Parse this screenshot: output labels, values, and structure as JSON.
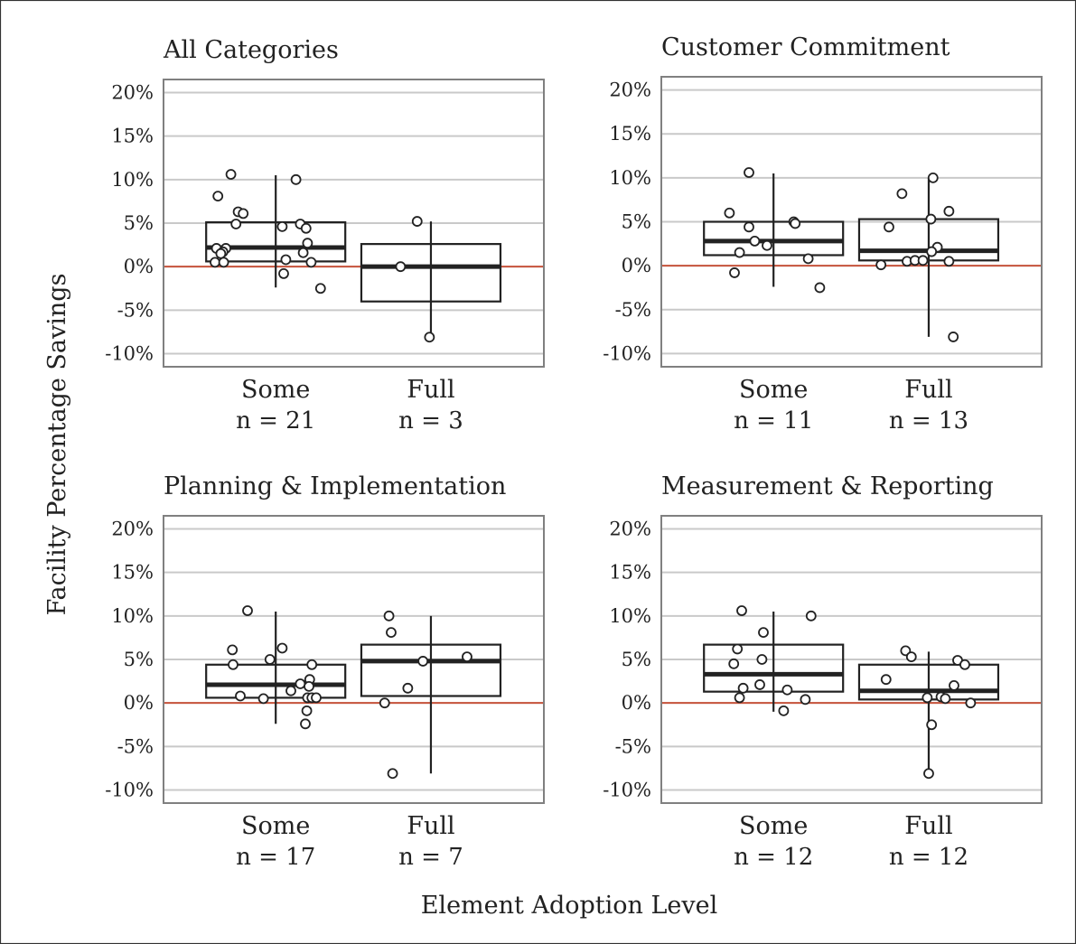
{
  "chart_data": {
    "type": "box",
    "xlabel": "Element Adoption Level",
    "ylabel": "Facility Percentage Savings",
    "ylim": [
      -11.5,
      21.5
    ],
    "yticks": [
      20,
      15,
      10,
      5,
      0,
      -5,
      -10
    ],
    "ytick_labels": [
      "20%",
      "15%",
      "10%",
      "5%",
      "0%",
      "-5%",
      "-10%"
    ],
    "grid": "horizontal",
    "reference_line": {
      "y": 0,
      "color": "#c8553d"
    },
    "colors": {
      "box": "#222222",
      "grid": "#c9c9c9",
      "frame": "#808080",
      "zero_line": "#c8553d",
      "point_fill": "#ffffff"
    },
    "panels": [
      {
        "title": "All Categories",
        "groups": [
          {
            "label": "Some",
            "n_label": "n = 21",
            "box": {
              "q1": 0.6,
              "median": 2.2,
              "q3": 5.1,
              "whisker_low": -2.4,
              "whisker_high": 10.5
            },
            "points": [
              {
                "x": -0.8,
                "y": 8.1
              },
              {
                "x": -0.62,
                "y": 10.6
              },
              {
                "x": -0.52,
                "y": 6.3
              },
              {
                "x": -0.45,
                "y": 6.1
              },
              {
                "x": -0.55,
                "y": 4.9
              },
              {
                "x": 0.28,
                "y": 10.0
              },
              {
                "x": 0.09,
                "y": 4.6
              },
              {
                "x": 0.34,
                "y": 4.9
              },
              {
                "x": 0.42,
                "y": 4.4
              },
              {
                "x": 0.44,
                "y": 2.7
              },
              {
                "x": 0.38,
                "y": 1.6
              },
              {
                "x": -0.82,
                "y": 2.1
              },
              {
                "x": -0.69,
                "y": 2.1
              },
              {
                "x": -0.73,
                "y": 1.7
              },
              {
                "x": -0.76,
                "y": 1.5
              },
              {
                "x": -0.84,
                "y": 0.5
              },
              {
                "x": -0.72,
                "y": 0.5
              },
              {
                "x": 0.14,
                "y": 0.8
              },
              {
                "x": 0.49,
                "y": 0.5
              },
              {
                "x": 0.11,
                "y": -0.8
              },
              {
                "x": 0.62,
                "y": -2.5
              }
            ]
          },
          {
            "label": "Full",
            "n_label": "n = 3",
            "box": {
              "q1": -4.0,
              "median": 0.0,
              "q3": 2.6,
              "whisker_low": -8.1,
              "whisker_high": 5.2
            },
            "points": [
              {
                "x": -0.19,
                "y": 5.2
              },
              {
                "x": -0.42,
                "y": 0.0
              },
              {
                "x": -0.02,
                "y": -8.1
              }
            ]
          }
        ]
      },
      {
        "title": "Customer Commitment",
        "groups": [
          {
            "label": "Some",
            "n_label": "n = 11",
            "box": {
              "q1": 1.2,
              "median": 2.8,
              "q3": 5.0,
              "whisker_low": -2.4,
              "whisker_high": 10.5
            },
            "points": [
              {
                "x": -0.34,
                "y": 10.6
              },
              {
                "x": -0.61,
                "y": 6.0
              },
              {
                "x": -0.34,
                "y": 4.4
              },
              {
                "x": 0.28,
                "y": 5.0
              },
              {
                "x": 0.3,
                "y": 4.8
              },
              {
                "x": -0.26,
                "y": 2.8
              },
              {
                "x": -0.09,
                "y": 2.3
              },
              {
                "x": -0.47,
                "y": 1.5
              },
              {
                "x": 0.48,
                "y": 0.8
              },
              {
                "x": -0.54,
                "y": -0.8
              },
              {
                "x": 0.64,
                "y": -2.5
              }
            ]
          },
          {
            "label": "Full",
            "n_label": "n = 13",
            "box": {
              "q1": 0.6,
              "median": 1.7,
              "q3": 5.3,
              "whisker_low": -8.1,
              "whisker_high": 10.0
            },
            "points": [
              {
                "x": 0.06,
                "y": 10.0
              },
              {
                "x": -0.37,
                "y": 8.2
              },
              {
                "x": 0.28,
                "y": 6.2
              },
              {
                "x": 0.03,
                "y": 5.3
              },
              {
                "x": -0.55,
                "y": 4.4
              },
              {
                "x": 0.12,
                "y": 2.1
              },
              {
                "x": 0.04,
                "y": 1.6
              },
              {
                "x": -0.66,
                "y": 0.1
              },
              {
                "x": -0.3,
                "y": 0.5
              },
              {
                "x": -0.19,
                "y": 0.6
              },
              {
                "x": -0.08,
                "y": 0.6
              },
              {
                "x": 0.28,
                "y": 0.5
              },
              {
                "x": 0.34,
                "y": -8.1
              }
            ]
          }
        ]
      },
      {
        "title": "Planning & Implementation",
        "groups": [
          {
            "label": "Some",
            "n_label": "n = 17",
            "box": {
              "q1": 0.6,
              "median": 2.1,
              "q3": 4.4,
              "whisker_low": -2.4,
              "whisker_high": 10.5
            },
            "points": [
              {
                "x": -0.39,
                "y": 10.6
              },
              {
                "x": -0.6,
                "y": 6.1
              },
              {
                "x": -0.59,
                "y": 4.4
              },
              {
                "x": -0.08,
                "y": 5.0
              },
              {
                "x": 0.09,
                "y": 6.3
              },
              {
                "x": 0.5,
                "y": 4.4
              },
              {
                "x": 0.47,
                "y": 2.7
              },
              {
                "x": 0.34,
                "y": 2.2
              },
              {
                "x": 0.46,
                "y": 1.9
              },
              {
                "x": 0.21,
                "y": 1.4
              },
              {
                "x": -0.49,
                "y": 0.8
              },
              {
                "x": -0.17,
                "y": 0.5
              },
              {
                "x": 0.44,
                "y": 0.6
              },
              {
                "x": 0.5,
                "y": 0.6
              },
              {
                "x": 0.56,
                "y": 0.6
              },
              {
                "x": 0.43,
                "y": -0.9
              },
              {
                "x": 0.41,
                "y": -2.4
              }
            ]
          },
          {
            "label": "Full",
            "n_label": "n = 7",
            "box": {
              "q1": 0.8,
              "median": 4.8,
              "q3": 6.7,
              "whisker_low": -8.1,
              "whisker_high": 10.0
            },
            "points": [
              {
                "x": -0.58,
                "y": 10.0
              },
              {
                "x": -0.55,
                "y": 8.1
              },
              {
                "x": -0.11,
                "y": 4.8
              },
              {
                "x": 0.5,
                "y": 5.3
              },
              {
                "x": -0.32,
                "y": 1.7
              },
              {
                "x": -0.64,
                "y": 0.0
              },
              {
                "x": -0.53,
                "y": -8.1
              }
            ]
          }
        ]
      },
      {
        "title": "Measurement & Reporting",
        "groups": [
          {
            "label": "Some",
            "n_label": "n = 12",
            "box": {
              "q1": 1.3,
              "median": 3.3,
              "q3": 6.7,
              "whisker_low": -1.0,
              "whisker_high": 10.5
            },
            "points": [
              {
                "x": -0.44,
                "y": 10.6
              },
              {
                "x": -0.14,
                "y": 8.1
              },
              {
                "x": 0.52,
                "y": 10.0
              },
              {
                "x": -0.5,
                "y": 6.2
              },
              {
                "x": -0.55,
                "y": 4.5
              },
              {
                "x": -0.16,
                "y": 5.0
              },
              {
                "x": -0.19,
                "y": 2.1
              },
              {
                "x": -0.42,
                "y": 1.7
              },
              {
                "x": 0.19,
                "y": 1.5
              },
              {
                "x": -0.47,
                "y": 0.6
              },
              {
                "x": 0.44,
                "y": 0.4
              },
              {
                "x": 0.14,
                "y": -0.9
              }
            ]
          },
          {
            "label": "Full",
            "n_label": "n = 12",
            "box": {
              "q1": 0.4,
              "median": 1.4,
              "q3": 4.4,
              "whisker_low": -8.1,
              "whisker_high": 5.9
            },
            "points": [
              {
                "x": -0.32,
                "y": 6.0
              },
              {
                "x": -0.24,
                "y": 5.3
              },
              {
                "x": 0.4,
                "y": 4.9
              },
              {
                "x": 0.5,
                "y": 4.4
              },
              {
                "x": -0.59,
                "y": 2.7
              },
              {
                "x": 0.35,
                "y": 2.0
              },
              {
                "x": 0.17,
                "y": 0.7
              },
              {
                "x": -0.02,
                "y": 0.6
              },
              {
                "x": 0.23,
                "y": 0.5
              },
              {
                "x": 0.58,
                "y": 0.0
              },
              {
                "x": 0.04,
                "y": -2.5
              },
              {
                "x": 0.0,
                "y": -8.1
              }
            ]
          }
        ]
      }
    ]
  }
}
